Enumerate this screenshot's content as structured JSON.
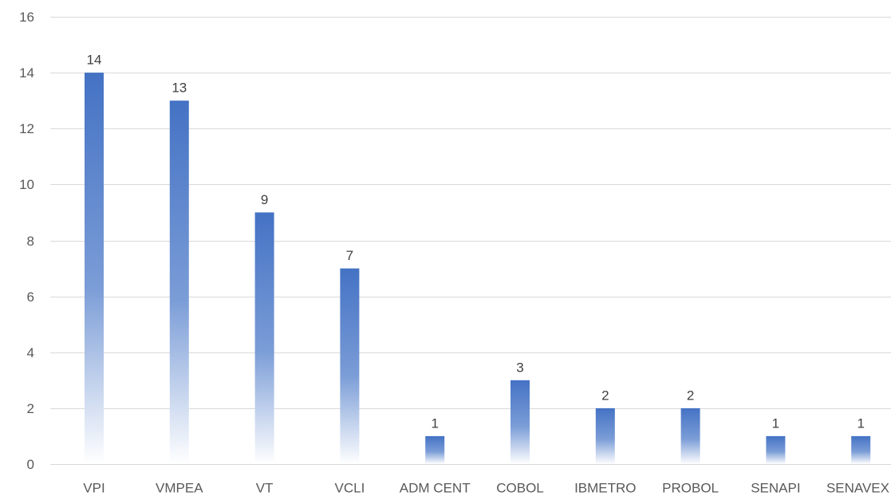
{
  "chart_data": {
    "type": "bar",
    "categories": [
      "VPI",
      "VMPEA",
      "VT",
      "VCLI",
      "ADM CENT",
      "COBOL",
      "IBMETRO",
      "PROBOL",
      "SENAPI",
      "SENAVEX"
    ],
    "values": [
      14,
      13,
      9,
      7,
      1,
      3,
      2,
      2,
      1,
      1
    ],
    "yticks": [
      0,
      2,
      4,
      6,
      8,
      10,
      12,
      14,
      16
    ],
    "ylim": [
      0,
      16
    ],
    "grid": true,
    "legend": "none",
    "data_labels": true,
    "colors": {
      "bar_top": "#4472c4",
      "bar_bottom": "#ffffff",
      "grid": "#d9d9d9",
      "tick_text": "#595959",
      "label_text": "#404040"
    }
  }
}
